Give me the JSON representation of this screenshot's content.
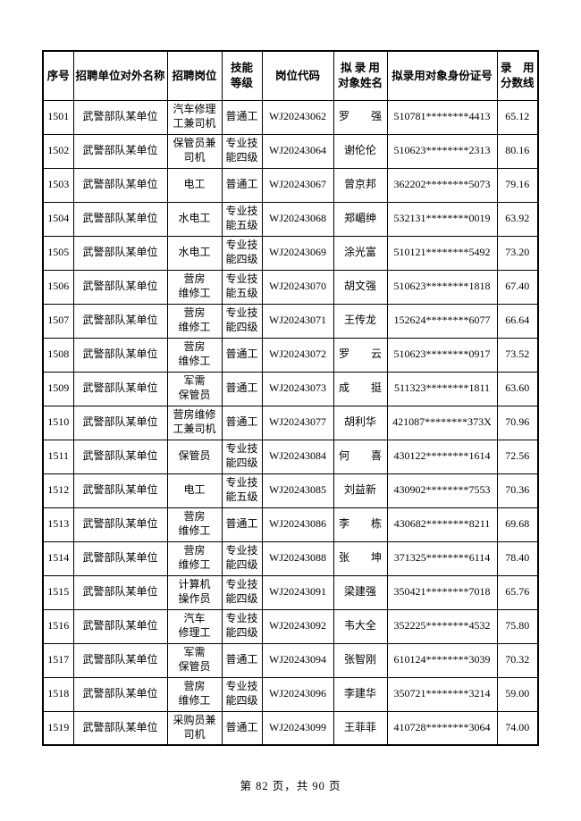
{
  "page": {
    "footer": "第 82 页，共 90 页"
  },
  "table": {
    "headers": [
      {
        "key": "seq",
        "label": "序号"
      },
      {
        "key": "unit",
        "label": "招聘单位对外名称"
      },
      {
        "key": "pos",
        "label": "招聘岗位"
      },
      {
        "key": "skill",
        "label": "技能\n等级"
      },
      {
        "key": "code",
        "label": "岗位代码"
      },
      {
        "key": "name",
        "label": "拟 录 用\n对象姓名"
      },
      {
        "key": "id",
        "label": "拟录用对象身份证号"
      },
      {
        "key": "score",
        "label": "录　用\n分数线"
      }
    ],
    "rows": [
      {
        "seq": "1501",
        "unit": "武警部队某单位",
        "pos": "汽车修理\n工兼司机",
        "skill": "普通工",
        "code": "WJ20243062",
        "name": "罗　　强",
        "id": "510781********4413",
        "score": "65.12"
      },
      {
        "seq": "1502",
        "unit": "武警部队某单位",
        "pos": "保管员兼\n司机",
        "skill": "专业技\n能四级",
        "code": "WJ20243064",
        "name": "谢伦伦",
        "id": "510623********2313",
        "score": "80.16"
      },
      {
        "seq": "1503",
        "unit": "武警部队某单位",
        "pos": "电工",
        "skill": "普通工",
        "code": "WJ20243067",
        "name": "曾京邦",
        "id": "362202********5073",
        "score": "79.16"
      },
      {
        "seq": "1504",
        "unit": "武警部队某单位",
        "pos": "水电工",
        "skill": "专业技\n能五级",
        "code": "WJ20243068",
        "name": "郑嵋绅",
        "id": "532131********0019",
        "score": "63.92"
      },
      {
        "seq": "1505",
        "unit": "武警部队某单位",
        "pos": "水电工",
        "skill": "专业技\n能四级",
        "code": "WJ20243069",
        "name": "涂光富",
        "id": "510121********5492",
        "score": "73.20"
      },
      {
        "seq": "1506",
        "unit": "武警部队某单位",
        "pos": "营房\n维修工",
        "skill": "专业技\n能五级",
        "code": "WJ20243070",
        "name": "胡文强",
        "id": "510623********1818",
        "score": "67.40"
      },
      {
        "seq": "1507",
        "unit": "武警部队某单位",
        "pos": "营房\n维修工",
        "skill": "专业技\n能四级",
        "code": "WJ20243071",
        "name": "王传龙",
        "id": "152624********6077",
        "score": "66.64"
      },
      {
        "seq": "1508",
        "unit": "武警部队某单位",
        "pos": "营房\n维修工",
        "skill": "普通工",
        "code": "WJ20243072",
        "name": "罗　　云",
        "id": "510623********0917",
        "score": "73.52"
      },
      {
        "seq": "1509",
        "unit": "武警部队某单位",
        "pos": "军需\n保管员",
        "skill": "普通工",
        "code": "WJ20243073",
        "name": "成　　挺",
        "id": "511323********1811",
        "score": "63.60"
      },
      {
        "seq": "1510",
        "unit": "武警部队某单位",
        "pos": "营房维修\n工兼司机",
        "skill": "普通工",
        "code": "WJ20243077",
        "name": "胡利华",
        "id": "421087********373X",
        "score": "70.96"
      },
      {
        "seq": "1511",
        "unit": "武警部队某单位",
        "pos": "保管员",
        "skill": "专业技\n能四级",
        "code": "WJ20243084",
        "name": "何　　喜",
        "id": "430122********1614",
        "score": "72.56"
      },
      {
        "seq": "1512",
        "unit": "武警部队某单位",
        "pos": "电工",
        "skill": "专业技\n能五级",
        "code": "WJ20243085",
        "name": "刘益新",
        "id": "430902********7553",
        "score": "70.36"
      },
      {
        "seq": "1513",
        "unit": "武警部队某单位",
        "pos": "营房\n维修工",
        "skill": "普通工",
        "code": "WJ20243086",
        "name": "李　　栋",
        "id": "430682********8211",
        "score": "69.68"
      },
      {
        "seq": "1514",
        "unit": "武警部队某单位",
        "pos": "营房\n维修工",
        "skill": "专业技\n能四级",
        "code": "WJ20243088",
        "name": "张　　坤",
        "id": "371325********6114",
        "score": "78.40"
      },
      {
        "seq": "1515",
        "unit": "武警部队某单位",
        "pos": "计算机\n操作员",
        "skill": "专业技\n能四级",
        "code": "WJ20243091",
        "name": "梁建强",
        "id": "350421********7018",
        "score": "65.76"
      },
      {
        "seq": "1516",
        "unit": "武警部队某单位",
        "pos": "汽车\n修理工",
        "skill": "专业技\n能四级",
        "code": "WJ20243092",
        "name": "韦大全",
        "id": "352225********4532",
        "score": "75.80"
      },
      {
        "seq": "1517",
        "unit": "武警部队某单位",
        "pos": "军需\n保管员",
        "skill": "普通工",
        "code": "WJ20243094",
        "name": "张智刚",
        "id": "610124********3039",
        "score": "70.32"
      },
      {
        "seq": "1518",
        "unit": "武警部队某单位",
        "pos": "营房\n维修工",
        "skill": "专业技\n能四级",
        "code": "WJ20243096",
        "name": "李建华",
        "id": "350721********3214",
        "score": "59.00"
      },
      {
        "seq": "1519",
        "unit": "武警部队某单位",
        "pos": "采购员兼\n司机",
        "skill": "普通工",
        "code": "WJ20243099",
        "name": "王菲菲",
        "id": "410728********3064",
        "score": "74.00"
      }
    ]
  }
}
